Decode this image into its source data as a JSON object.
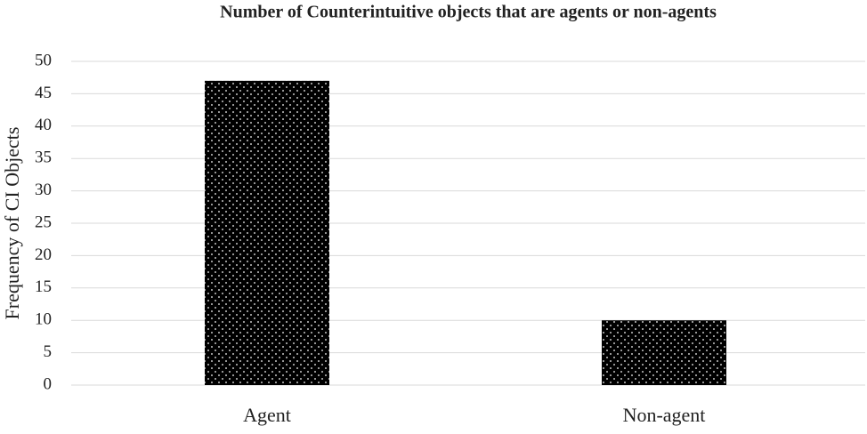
{
  "chart_data": {
    "type": "bar",
    "title": "Number of Counterintuitive objects that are agents or non-agents",
    "y_label": "Frequency of CI Objects",
    "categories": [
      "Agent",
      "Non-agent"
    ],
    "values": [
      47,
      10
    ],
    "color": "#000000",
    "ylim": [
      0,
      50
    ],
    "yticks": [
      0,
      5,
      10,
      15,
      20,
      25,
      30,
      35,
      40,
      45,
      50
    ],
    "grid": true
  }
}
